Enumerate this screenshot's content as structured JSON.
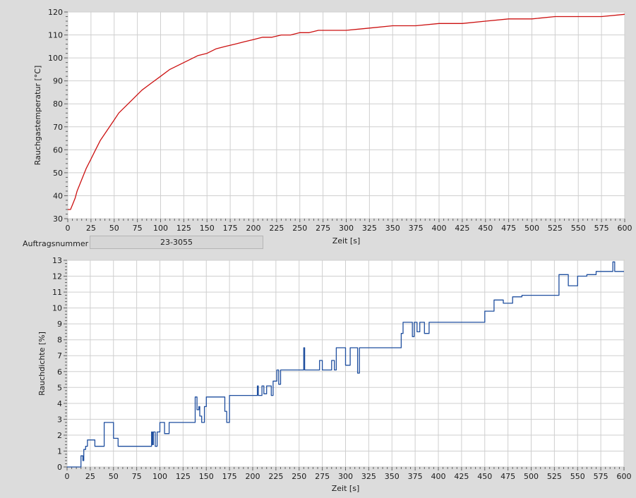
{
  "order": {
    "label": "Auftragsnummer",
    "value": "23-3055"
  },
  "colors": {
    "plot_bg": "#ffffff",
    "grid": "#cfcfcf",
    "frame_accent": "#d8c86a",
    "temperature": "#cc1111",
    "density": "#1f4f9f"
  },
  "chart_data": [
    {
      "type": "line",
      "title": "",
      "xlabel": "Zeit [s]",
      "ylabel": "Rauchgastemperatur [°C]",
      "xlim": [
        0,
        600
      ],
      "ylim": [
        30,
        120
      ],
      "x_ticks": [
        0,
        25,
        50,
        75,
        100,
        125,
        150,
        175,
        200,
        225,
        250,
        275,
        300,
        325,
        350,
        375,
        400,
        425,
        450,
        475,
        500,
        525,
        550,
        575,
        600
      ],
      "y_ticks": [
        30,
        40,
        50,
        60,
        70,
        80,
        90,
        100,
        110,
        120
      ],
      "grid": true,
      "series": [
        {
          "x": [
            0,
            3,
            5,
            8,
            10,
            15,
            20,
            25,
            30,
            35,
            40,
            45,
            50,
            55,
            60,
            65,
            70,
            75,
            80,
            90,
            100,
            110,
            120,
            130,
            140,
            150,
            160,
            170,
            180,
            190,
            200,
            210,
            220,
            230,
            240,
            250,
            260,
            270,
            280,
            290,
            300,
            325,
            350,
            375,
            400,
            425,
            450,
            475,
            500,
            525,
            550,
            575,
            600
          ],
          "y": [
            34,
            34,
            36,
            39,
            42,
            47,
            52,
            56,
            60,
            64,
            67,
            70,
            73,
            76,
            78,
            80,
            82,
            84,
            86,
            89,
            92,
            95,
            97,
            99,
            101,
            102,
            104,
            105,
            106,
            107,
            108,
            109,
            109,
            110,
            110,
            111,
            111,
            112,
            112,
            112,
            112,
            113,
            114,
            114,
            115,
            115,
            116,
            117,
            117,
            118,
            118,
            118,
            119
          ]
        }
      ]
    },
    {
      "type": "line",
      "title": "",
      "xlabel": "Zeit [s]",
      "ylabel": "Rauchdichte [%]",
      "xlim": [
        0,
        600
      ],
      "ylim": [
        0,
        13
      ],
      "x_ticks": [
        0,
        25,
        50,
        75,
        100,
        125,
        150,
        175,
        200,
        225,
        250,
        275,
        300,
        325,
        350,
        375,
        400,
        425,
        450,
        475,
        500,
        525,
        550,
        575,
        600
      ],
      "y_ticks": [
        0,
        1,
        2,
        3,
        4,
        5,
        6,
        7,
        8,
        9,
        10,
        11,
        12,
        13
      ],
      "grid": true,
      "step": true,
      "series": [
        {
          "x": [
            0,
            13,
            15,
            17,
            18,
            20,
            22,
            25,
            30,
            35,
            40,
            45,
            48,
            50,
            55,
            60,
            70,
            80,
            90,
            91,
            92,
            93,
            95,
            97,
            100,
            102,
            105,
            110,
            120,
            130,
            137,
            138,
            140,
            142,
            143,
            145,
            148,
            150,
            155,
            160,
            165,
            170,
            172,
            175,
            180,
            190,
            200,
            205,
            206,
            210,
            212,
            215,
            220,
            222,
            225,
            226,
            228,
            230,
            240,
            250,
            255,
            256,
            258,
            260,
            265,
            270,
            272,
            275,
            280,
            285,
            288,
            290,
            295,
            300,
            305,
            310,
            313,
            315,
            320,
            330,
            340,
            350,
            360,
            362,
            365,
            370,
            372,
            374,
            377,
            380,
            385,
            390,
            400,
            410,
            420,
            430,
            440,
            450,
            460,
            470,
            480,
            490,
            500,
            510,
            520,
            530,
            540,
            550,
            560,
            570,
            580,
            585,
            588,
            590,
            595,
            600
          ],
          "y": [
            0,
            0,
            0.7,
            0.4,
            1.1,
            1.3,
            1.7,
            1.7,
            1.3,
            1.3,
            2.8,
            2.8,
            2.8,
            1.8,
            1.3,
            1.3,
            1.3,
            1.3,
            1.3,
            2.2,
            1.4,
            2.2,
            1.3,
            2.2,
            2.8,
            2.8,
            2.1,
            2.8,
            2.8,
            2.8,
            2.8,
            4.4,
            3.6,
            3.8,
            3.2,
            2.8,
            3.8,
            4.4,
            4.4,
            4.4,
            4.4,
            3.5,
            2.8,
            4.5,
            4.5,
            4.5,
            4.5,
            5.1,
            4.5,
            5.1,
            4.6,
            5.1,
            4.5,
            5.4,
            5.4,
            6.1,
            5.2,
            6.1,
            6.1,
            6.1,
            7.5,
            6.1,
            6.1,
            6.1,
            6.1,
            6.1,
            6.7,
            6.1,
            6.1,
            6.7,
            6.1,
            7.5,
            7.5,
            6.4,
            7.5,
            7.5,
            5.9,
            7.5,
            7.5,
            7.5,
            7.5,
            7.5,
            8.4,
            9.1,
            9.1,
            9.1,
            8.2,
            9.1,
            8.5,
            9.1,
            8.4,
            9.1,
            9.1,
            9.1,
            9.1,
            9.1,
            9.1,
            9.8,
            10.5,
            10.3,
            10.7,
            10.8,
            10.8,
            10.8,
            10.8,
            12.1,
            11.4,
            12.0,
            12.1,
            12.3,
            12.3,
            12.3,
            12.9,
            12.3,
            12.3,
            12.3
          ]
        }
      ]
    }
  ]
}
